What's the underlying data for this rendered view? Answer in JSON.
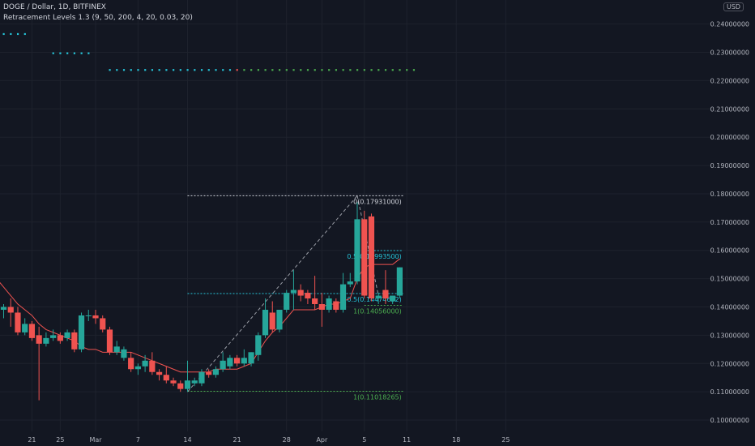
{
  "header": {
    "symbol_line": "DOGE / Dollar, 1D, BITFINEX",
    "indicator_line": "Retracement Levels 1.3 (9, 50, 200, 4, 20, 0.03, 20)",
    "currency_badge": "USD"
  },
  "colors": {
    "background": "#131722",
    "up": "#26a69a",
    "down": "#ef5350",
    "grid": "#1e222d",
    "axis_text": "#b2b5be",
    "fib_cyan": "#26c6da",
    "fib_green": "#4caf50",
    "fib_white": "#d1d4dc",
    "dots_cyan": "#26c6da"
  },
  "chart_data": {
    "type": "candlestick",
    "x_tick_labels": [
      "21",
      "25",
      "Mar",
      "7",
      "14",
      "21",
      "28",
      "Apr",
      "5",
      "11",
      "18",
      "25"
    ],
    "x_tick_index": [
      -9,
      -5,
      0,
      6,
      13,
      20,
      27,
      32,
      38,
      44,
      51,
      58
    ],
    "y_tick_values": [
      0.1,
      0.11,
      0.12,
      0.13,
      0.14,
      0.15,
      0.16,
      0.17,
      0.18,
      0.19,
      0.2,
      0.21,
      0.22,
      0.23,
      0.24
    ],
    "y_tick_labels": [
      "0.10000000",
      "0.11000000",
      "0.12000000",
      "0.13000000",
      "0.14000000",
      "0.15000000",
      "0.16000000",
      "0.17000000",
      "0.18000000",
      "0.19000000",
      "0.20000000",
      "0.21000000",
      "0.22000000",
      "0.23000000",
      "0.24000000"
    ],
    "ylim": [
      0.096,
      0.2485
    ],
    "grid": true,
    "candles": [
      {
        "i": -13,
        "o": 0.139,
        "h": 0.141,
        "c": 0.14,
        "l": 0.136
      },
      {
        "i": -12,
        "o": 0.14,
        "h": 0.143,
        "c": 0.138,
        "l": 0.133
      },
      {
        "i": -11,
        "o": 0.138,
        "h": 0.14,
        "c": 0.131,
        "l": 0.13
      },
      {
        "i": -10,
        "o": 0.131,
        "h": 0.136,
        "c": 0.134,
        "l": 0.13
      },
      {
        "i": -9,
        "o": 0.134,
        "h": 0.135,
        "c": 0.129,
        "l": 0.128
      },
      {
        "i": -8,
        "o": 0.13,
        "h": 0.133,
        "c": 0.127,
        "l": 0.107
      },
      {
        "i": -7,
        "o": 0.127,
        "h": 0.131,
        "c": 0.129,
        "l": 0.126
      },
      {
        "i": -6,
        "o": 0.129,
        "h": 0.132,
        "c": 0.13,
        "l": 0.128
      },
      {
        "i": -5,
        "o": 0.13,
        "h": 0.131,
        "c": 0.128,
        "l": 0.127
      },
      {
        "i": -4,
        "o": 0.129,
        "h": 0.132,
        "c": 0.131,
        "l": 0.128
      },
      {
        "i": -3,
        "o": 0.131,
        "h": 0.132,
        "c": 0.125,
        "l": 0.124
      },
      {
        "i": -2,
        "o": 0.125,
        "h": 0.138,
        "c": 0.137,
        "l": 0.124
      },
      {
        "i": -1,
        "o": 0.137,
        "h": 0.139,
        "c": 0.137,
        "l": 0.135
      },
      {
        "i": 0,
        "o": 0.137,
        "h": 0.139,
        "c": 0.136,
        "l": 0.134
      },
      {
        "i": 1,
        "o": 0.136,
        "h": 0.137,
        "c": 0.132,
        "l": 0.131
      },
      {
        "i": 2,
        "o": 0.132,
        "h": 0.133,
        "c": 0.124,
        "l": 0.123
      },
      {
        "i": 3,
        "o": 0.124,
        "h": 0.128,
        "c": 0.126,
        "l": 0.123
      },
      {
        "i": 4,
        "o": 0.122,
        "h": 0.126,
        "c": 0.125,
        "l": 0.121
      },
      {
        "i": 5,
        "o": 0.122,
        "h": 0.124,
        "c": 0.118,
        "l": 0.117
      },
      {
        "i": 6,
        "o": 0.118,
        "h": 0.12,
        "c": 0.119,
        "l": 0.116
      },
      {
        "i": 7,
        "o": 0.119,
        "h": 0.123,
        "c": 0.121,
        "l": 0.117
      },
      {
        "i": 8,
        "o": 0.121,
        "h": 0.124,
        "c": 0.117,
        "l": 0.116
      },
      {
        "i": 9,
        "o": 0.117,
        "h": 0.118,
        "c": 0.116,
        "l": 0.114
      },
      {
        "i": 10,
        "o": 0.116,
        "h": 0.119,
        "c": 0.114,
        "l": 0.113
      },
      {
        "i": 11,
        "o": 0.114,
        "h": 0.115,
        "c": 0.113,
        "l": 0.112
      },
      {
        "i": 12,
        "o": 0.113,
        "h": 0.114,
        "c": 0.111,
        "l": 0.11
      },
      {
        "i": 13,
        "o": 0.111,
        "h": 0.121,
        "c": 0.114,
        "l": 0.11
      },
      {
        "i": 14,
        "o": 0.113,
        "h": 0.115,
        "c": 0.114,
        "l": 0.112
      },
      {
        "i": 15,
        "o": 0.113,
        "h": 0.118,
        "c": 0.117,
        "l": 0.112
      },
      {
        "i": 16,
        "o": 0.117,
        "h": 0.118,
        "c": 0.116,
        "l": 0.115
      },
      {
        "i": 17,
        "o": 0.116,
        "h": 0.119,
        "c": 0.118,
        "l": 0.115
      },
      {
        "i": 18,
        "o": 0.118,
        "h": 0.124,
        "c": 0.121,
        "l": 0.117
      },
      {
        "i": 19,
        "o": 0.119,
        "h": 0.123,
        "c": 0.122,
        "l": 0.118
      },
      {
        "i": 20,
        "o": 0.122,
        "h": 0.123,
        "c": 0.12,
        "l": 0.119
      },
      {
        "i": 21,
        "o": 0.12,
        "h": 0.125,
        "c": 0.122,
        "l": 0.119
      },
      {
        "i": 22,
        "o": 0.12,
        "h": 0.124,
        "c": 0.124,
        "l": 0.119
      },
      {
        "i": 23,
        "o": 0.123,
        "h": 0.131,
        "c": 0.13,
        "l": 0.121
      },
      {
        "i": 24,
        "o": 0.13,
        "h": 0.143,
        "c": 0.139,
        "l": 0.129
      },
      {
        "i": 25,
        "o": 0.138,
        "h": 0.142,
        "c": 0.132,
        "l": 0.131
      },
      {
        "i": 26,
        "o": 0.132,
        "h": 0.139,
        "c": 0.139,
        "l": 0.131
      },
      {
        "i": 27,
        "o": 0.139,
        "h": 0.146,
        "c": 0.145,
        "l": 0.138
      },
      {
        "i": 28,
        "o": 0.145,
        "h": 0.153,
        "c": 0.146,
        "l": 0.139
      },
      {
        "i": 29,
        "o": 0.146,
        "h": 0.148,
        "c": 0.144,
        "l": 0.142
      },
      {
        "i": 30,
        "o": 0.145,
        "h": 0.146,
        "c": 0.143,
        "l": 0.141
      },
      {
        "i": 31,
        "o": 0.143,
        "h": 0.151,
        "c": 0.141,
        "l": 0.139
      },
      {
        "i": 32,
        "o": 0.141,
        "h": 0.145,
        "c": 0.139,
        "l": 0.133
      },
      {
        "i": 33,
        "o": 0.139,
        "h": 0.144,
        "c": 0.143,
        "l": 0.138
      },
      {
        "i": 34,
        "o": 0.142,
        "h": 0.143,
        "c": 0.139,
        "l": 0.138
      },
      {
        "i": 35,
        "o": 0.139,
        "h": 0.152,
        "c": 0.148,
        "l": 0.138
      },
      {
        "i": 36,
        "o": 0.148,
        "h": 0.152,
        "c": 0.149,
        "l": 0.147
      },
      {
        "i": 37,
        "o": 0.149,
        "h": 0.177,
        "c": 0.171,
        "l": 0.148
      },
      {
        "i": 38,
        "o": 0.171,
        "h": 0.174,
        "c": 0.144,
        "l": 0.143
      },
      {
        "i": 39,
        "o": 0.172,
        "h": 0.173,
        "c": 0.143,
        "l": 0.142
      },
      {
        "i": 40,
        "o": 0.143,
        "h": 0.145,
        "c": 0.144,
        "l": 0.141
      },
      {
        "i": 41,
        "o": 0.146,
        "h": 0.153,
        "c": 0.143,
        "l": 0.141
      },
      {
        "i": 42,
        "o": 0.142,
        "h": 0.144,
        "c": 0.144,
        "l": 0.141
      },
      {
        "i": 43,
        "o": 0.144,
        "h": 0.154,
        "c": 0.154,
        "l": 0.143
      }
    ],
    "trailing_line": [
      [
        -14,
        0.15
      ],
      [
        -13,
        0.147
      ],
      [
        -12,
        0.144
      ],
      [
        -11,
        0.141
      ],
      [
        -10,
        0.139
      ],
      [
        -9,
        0.137
      ],
      [
        -8,
        0.134
      ],
      [
        -7,
        0.132
      ],
      [
        -6,
        0.131
      ],
      [
        -5,
        0.13
      ],
      [
        -4,
        0.129
      ],
      [
        -3,
        0.128
      ],
      [
        -2,
        0.126
      ],
      [
        -1,
        0.125
      ],
      [
        0,
        0.125
      ],
      [
        1,
        0.124
      ],
      [
        2,
        0.124
      ],
      [
        3,
        0.124
      ],
      [
        4,
        0.124
      ],
      [
        5,
        0.124
      ],
      [
        6,
        0.123
      ],
      [
        7,
        0.122
      ],
      [
        8,
        0.121
      ],
      [
        9,
        0.12
      ],
      [
        10,
        0.119
      ],
      [
        11,
        0.118
      ],
      [
        12,
        0.117
      ],
      [
        13,
        0.117
      ],
      [
        14,
        0.117
      ],
      [
        15,
        0.117
      ],
      [
        16,
        0.117
      ],
      [
        17,
        0.118
      ],
      [
        18,
        0.118
      ],
      [
        19,
        0.118
      ],
      [
        20,
        0.118
      ],
      [
        21,
        0.119
      ],
      [
        22,
        0.12
      ],
      [
        23,
        0.124
      ],
      [
        24,
        0.128
      ],
      [
        25,
        0.131
      ],
      [
        26,
        0.133
      ],
      [
        27,
        0.136
      ],
      [
        28,
        0.139
      ],
      [
        29,
        0.139
      ],
      [
        30,
        0.139
      ],
      [
        31,
        0.139
      ],
      [
        32,
        0.14
      ],
      [
        33,
        0.141
      ],
      [
        34,
        0.141
      ],
      [
        35,
        0.142
      ],
      [
        36,
        0.143
      ],
      [
        37,
        0.15
      ],
      [
        38,
        0.154
      ],
      [
        39,
        0.155
      ],
      [
        40,
        0.155
      ],
      [
        41,
        0.155
      ],
      [
        42,
        0.155
      ],
      [
        43,
        0.157
      ]
    ],
    "dot_rows": [
      {
        "price": 0.2365,
        "from": -14,
        "to": -10,
        "step": 1
      },
      {
        "price": 0.2297,
        "from": -6,
        "to": -1,
        "step": 1
      },
      {
        "price": 0.2238,
        "from": 2,
        "to": 45,
        "step": 1,
        "red_at": 20
      }
    ],
    "trend_lines": [
      {
        "from": [
          13,
          0.11
        ],
        "to": [
          37,
          0.1793
        ],
        "color_key": "fib_white"
      },
      {
        "from": [
          37,
          0.1793
        ],
        "to": [
          40,
          0.144
        ],
        "color_key": "fib_white"
      }
    ],
    "fib_levels": [
      {
        "label": "0(0.17931000)",
        "price": 0.17931,
        "from": 13,
        "to": 43.5,
        "color_key": "fib_white"
      },
      {
        "label": "0.5(0.15993500)",
        "price": 0.159935,
        "from": 38,
        "to": 43.5,
        "color_key": "fib_cyan"
      },
      {
        "label": "0.5(0.14474632)",
        "price": 0.14474632,
        "from": 13,
        "to": 43.5,
        "color_key": "fib_cyan"
      },
      {
        "label": "1(0.14056000)",
        "price": 0.14056,
        "from": 38,
        "to": 43.5,
        "color_key": "fib_green"
      },
      {
        "label": "1(0.11018265)",
        "price": 0.11018265,
        "from": 13,
        "to": 43.5,
        "color_key": "fib_green"
      }
    ]
  }
}
